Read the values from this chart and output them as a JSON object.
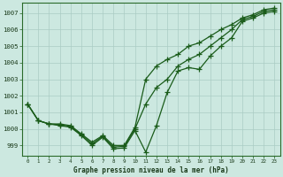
{
  "title": "Graphe pression niveau de la mer (hPa)",
  "background_color": "#cce8e0",
  "grid_color": "#aaccC4",
  "line_color": "#1a5c1a",
  "x_min": -0.5,
  "x_max": 23.5,
  "y_min": 998.4,
  "y_max": 1007.6,
  "y_ticks": [
    999,
    1000,
    1001,
    1002,
    1003,
    1004,
    1005,
    1006,
    1007
  ],
  "hours": [
    0,
    1,
    2,
    3,
    4,
    5,
    6,
    7,
    8,
    9,
    10,
    11,
    12,
    13,
    14,
    15,
    16,
    17,
    18,
    19,
    20,
    21,
    22,
    23
  ],
  "series_main": [
    1001.5,
    1000.5,
    1000.3,
    1000.2,
    1000.1,
    999.6,
    999.0,
    999.5,
    998.8,
    998.85,
    999.9,
    998.6,
    1000.2,
    1002.2,
    1003.5,
    1003.7,
    1003.6,
    1004.4,
    1005.0,
    1005.5,
    1006.5,
    1006.7,
    1007.0,
    1007.1
  ],
  "series_line2": [
    1001.5,
    1000.5,
    1000.3,
    1000.25,
    1000.15,
    999.65,
    999.1,
    999.55,
    998.9,
    998.95,
    1000.0,
    1001.5,
    1002.5,
    1003.0,
    1003.8,
    1004.2,
    1004.5,
    1005.0,
    1005.5,
    1006.0,
    1006.6,
    1006.8,
    1007.1,
    1007.2
  ],
  "series_line3": [
    1001.5,
    1000.5,
    1000.3,
    1000.3,
    1000.2,
    999.7,
    999.2,
    999.6,
    999.0,
    999.0,
    1000.1,
    1003.0,
    1003.8,
    1004.2,
    1004.5,
    1005.0,
    1005.2,
    1005.6,
    1006.0,
    1006.3,
    1006.7,
    1006.9,
    1007.2,
    1007.3
  ],
  "x_tick_labels": [
    "0",
    "1",
    "2",
    "3",
    "4",
    "5",
    "6",
    "7",
    "8",
    "9",
    "10",
    "11",
    "12",
    "13",
    "14",
    "15",
    "16",
    "17",
    "18",
    "19",
    "20",
    "21",
    "22",
    "23"
  ]
}
